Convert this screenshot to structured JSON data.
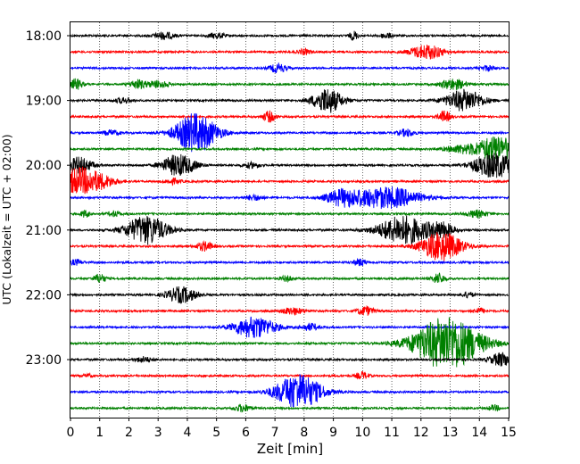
{
  "chart_data": {
    "type": "line",
    "subtype": "helicorder",
    "xlabel": "Zeit  [min]",
    "ylabel": "UTC (Lokalzeit = UTC + 02:00)",
    "xlim": [
      0,
      15
    ],
    "x_ticks": [
      "0",
      "1",
      "2",
      "3",
      "4",
      "5",
      "6",
      "7",
      "8",
      "9",
      "10",
      "11",
      "12",
      "13",
      "14",
      "15"
    ],
    "y_ticks": [
      "18:00",
      "19:00",
      "20:00",
      "21:00",
      "22:00",
      "23:00"
    ],
    "trace_interval_min": 15,
    "traces_per_hour": 4,
    "color_cycle": [
      "#000000",
      "#ff0000",
      "#0000ff",
      "#008000"
    ],
    "grid": "vertical dotted",
    "traces": [
      {
        "start": "18:00",
        "bursts": [
          [
            3.2,
            4,
            0.25
          ],
          [
            5.0,
            3,
            0.2
          ],
          [
            9.7,
            5,
            0.1
          ],
          [
            10.8,
            3,
            0.15
          ]
        ]
      },
      {
        "start": "18:15",
        "bursts": [
          [
            8.0,
            3,
            0.15
          ],
          [
            12.2,
            8,
            0.4
          ]
        ]
      },
      {
        "start": "18:30",
        "bursts": [
          [
            7.1,
            5,
            0.2
          ],
          [
            14.3,
            3,
            0.15
          ]
        ]
      },
      {
        "start": "18:45",
        "bursts": [
          [
            0.2,
            6,
            0.15
          ],
          [
            2.3,
            5,
            0.2
          ],
          [
            3.0,
            4,
            0.25
          ],
          [
            13.1,
            6,
            0.3
          ]
        ]
      },
      {
        "start": "19:00",
        "bursts": [
          [
            1.8,
            3,
            0.2
          ],
          [
            8.8,
            14,
            0.35
          ],
          [
            13.5,
            12,
            0.45
          ]
        ]
      },
      {
        "start": "19:15",
        "bursts": [
          [
            6.8,
            6,
            0.15
          ],
          [
            12.8,
            6,
            0.15
          ]
        ]
      },
      {
        "start": "19:30",
        "bursts": [
          [
            4.3,
            22,
            0.5
          ],
          [
            1.4,
            3,
            0.2
          ],
          [
            11.5,
            4,
            0.2
          ]
        ]
      },
      {
        "start": "19:45",
        "bursts": [
          [
            13.4,
            4,
            0.4
          ],
          [
            14.6,
            14,
            0.5
          ]
        ]
      },
      {
        "start": "20:00",
        "bursts": [
          [
            0.3,
            9,
            0.3
          ],
          [
            3.7,
            12,
            0.4
          ],
          [
            6.2,
            3,
            0.2
          ],
          [
            14.5,
            14,
            0.5
          ]
        ]
      },
      {
        "start": "20:15",
        "bursts": [
          [
            0.2,
            14,
            0.5
          ],
          [
            1.0,
            6,
            0.4
          ],
          [
            3.5,
            3,
            0.2
          ]
        ]
      },
      {
        "start": "20:30",
        "bursts": [
          [
            9.3,
            8,
            0.4
          ],
          [
            10.8,
            12,
            0.8
          ],
          [
            6.3,
            3,
            0.2
          ]
        ]
      },
      {
        "start": "20:45",
        "bursts": [
          [
            1.5,
            3,
            0.15
          ],
          [
            13.9,
            4,
            0.25
          ],
          [
            0.5,
            4,
            0.1
          ]
        ]
      },
      {
        "start": "21:00",
        "bursts": [
          [
            2.6,
            16,
            0.5
          ],
          [
            11.4,
            16,
            0.6
          ],
          [
            12.7,
            8,
            0.3
          ]
        ]
      },
      {
        "start": "21:15",
        "bursts": [
          [
            4.6,
            5,
            0.2
          ],
          [
            12.7,
            16,
            0.5
          ]
        ]
      },
      {
        "start": "21:30",
        "bursts": [
          [
            0.2,
            3,
            0.15
          ],
          [
            9.9,
            4,
            0.15
          ]
        ]
      },
      {
        "start": "21:45",
        "bursts": [
          [
            1.0,
            5,
            0.15
          ],
          [
            12.6,
            6,
            0.15
          ],
          [
            7.4,
            3,
            0.15
          ]
        ]
      },
      {
        "start": "22:00",
        "bursts": [
          [
            3.8,
            9,
            0.35
          ],
          [
            13.6,
            3,
            0.15
          ]
        ]
      },
      {
        "start": "22:15",
        "bursts": [
          [
            7.6,
            4,
            0.25
          ],
          [
            10.1,
            5,
            0.2
          ],
          [
            14.0,
            3,
            0.15
          ]
        ]
      },
      {
        "start": "22:30",
        "bursts": [
          [
            6.3,
            12,
            0.5
          ],
          [
            8.2,
            4,
            0.2
          ]
        ]
      },
      {
        "start": "22:45",
        "bursts": [
          [
            12.9,
            30,
            0.8
          ]
        ]
      },
      {
        "start": "23:00",
        "bursts": [
          [
            2.5,
            3,
            0.2
          ],
          [
            14.8,
            8,
            0.3
          ]
        ]
      },
      {
        "start": "23:15",
        "bursts": [
          [
            10.0,
            4,
            0.15
          ],
          [
            0.6,
            2,
            0.1
          ]
        ]
      },
      {
        "start": "23:30",
        "bursts": [
          [
            7.8,
            20,
            0.55
          ]
        ]
      },
      {
        "start": "23:45",
        "bursts": [
          [
            5.9,
            4,
            0.2
          ],
          [
            14.5,
            3,
            0.15
          ]
        ]
      }
    ]
  }
}
